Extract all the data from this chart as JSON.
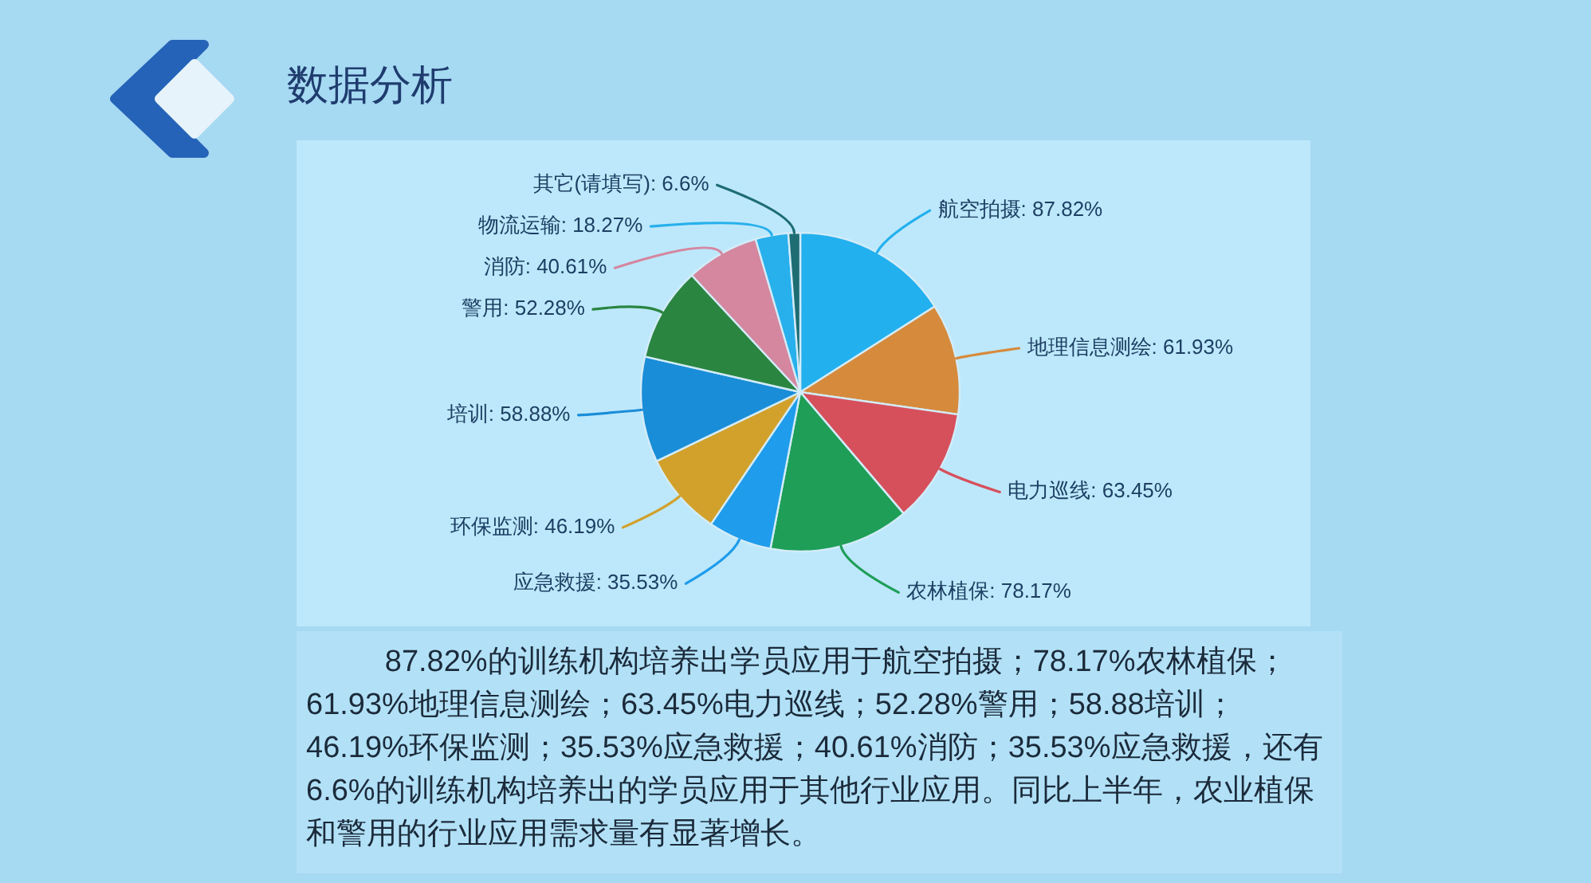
{
  "chart_data": {
    "type": "pie",
    "title": "数据分析",
    "categories": [
      "航空拍摄",
      "地理信息测绘",
      "电力巡线",
      "农林植保",
      "应急救援",
      "环保监测",
      "培训",
      "警用",
      "消防",
      "物流运输",
      "其它(请填写)"
    ],
    "values": [
      87.82,
      61.93,
      63.45,
      78.17,
      35.53,
      46.19,
      58.88,
      52.28,
      40.61,
      18.27,
      6.6
    ],
    "colors": [
      "#23b0ee",
      "#d68a3c",
      "#d6505c",
      "#1e9e57",
      "#1f9cec",
      "#d2a12c",
      "#1a8dd8",
      "#2a8540",
      "#d4879f",
      "#27b0ec",
      "#1d6d73"
    ],
    "value_labels": [
      "87.82%",
      "61.93%",
      "63.45%",
      "78.17%",
      "35.53%",
      "46.19%",
      "58.88%",
      "52.28%",
      "40.61%",
      "18.27%",
      "6.6%"
    ],
    "annotations": [
      "87.82%的训练机构培养出学员应用于航空拍摄；78.17%农林植保；61.93%地理信息测绘；63.45%电力巡线；52.28%警用；58.88培训；46.19%环保监测；35.53%应急救援；40.61%消防；35.53%应急救援，还有6.6%的训练机构培养出的学员应用于其他行业应用。同比上半年，农业植保和警用的行业应用需求量有显著增长。"
    ]
  }
}
